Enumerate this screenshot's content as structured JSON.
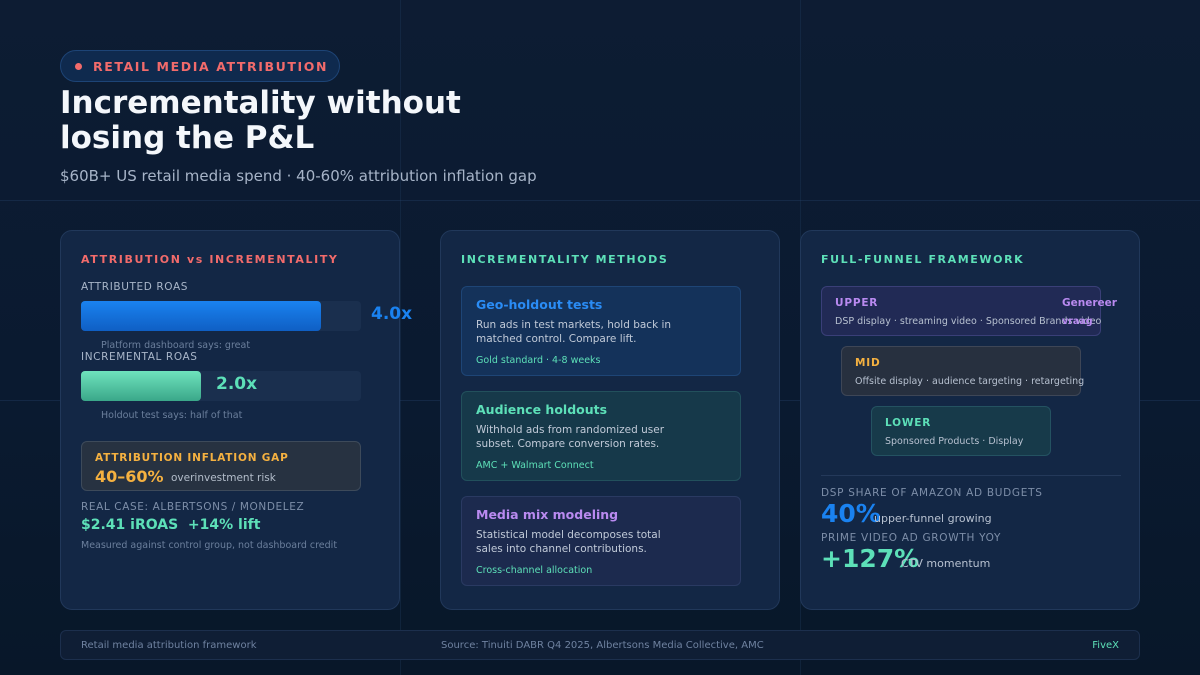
{
  "header": {
    "eyebrow": "RETAIL MEDIA ATTRIBUTION",
    "title_line1": "Incrementality without",
    "title_line2": "losing the P&L",
    "subtitle": "$60B+ US retail media spend · 40-60% attribution inflation gap"
  },
  "colors": {
    "accent_red": "#f26b6b",
    "accent_teal": "#5de0b8",
    "accent_blue": "#1a82f0",
    "accent_amber": "#f5b140",
    "accent_purple": "#b98af0"
  },
  "attribution_card": {
    "title": "ATTRIBUTION vs INCREMENTALITY",
    "attributed_label": "ATTRIBUTED ROAS",
    "attributed_value": "4.0x",
    "attributed_fill": 0.857,
    "attributed_note": "Platform dashboard says: great",
    "incremental_label": "INCREMENTAL ROAS",
    "incremental_value": "2.0x",
    "incremental_fill": 0.429,
    "incremental_note": "Holdout test says: half of that",
    "gap_title": "ATTRIBUTION INFLATION GAP",
    "gap_value": "40–60%",
    "gap_caption": "overinvestment risk",
    "case_label": "REAL CASE: ALBERTSONS / MONDELEZ",
    "case_values": "$2.41 iROAS  +14% lift",
    "case_note": "Measured against control group, not dashboard credit"
  },
  "methods_card": {
    "title": "INCREMENTALITY METHODS",
    "items": [
      {
        "name": "Geo-holdout tests",
        "description": "Run ads in test markets, hold back in matched control. Compare lift.",
        "footnote": "Gold standard · 4-8 weeks"
      },
      {
        "name": "Audience holdouts",
        "description": "Withhold ads from randomized user subset. Compare conversion rates.",
        "footnote": "AMC + Walmart Connect"
      },
      {
        "name": "Media mix modeling",
        "description": "Statistical model decomposes total sales into channel contributions.",
        "footnote": "Cross-channel allocation"
      }
    ]
  },
  "funnel_card": {
    "title": "FULL-FUNNEL FRAMEWORK",
    "upper": {
      "name": "UPPER",
      "description": "DSP display · streaming video · Sponsored Brands video",
      "tag_line1": "Genereer",
      "tag_line2": "vraag"
    },
    "mid": {
      "name": "MID",
      "description": "Offsite display · audience targeting · retargeting"
    },
    "lower": {
      "name": "LOWER",
      "description": "Sponsored Products · Display"
    },
    "stat1_label": "DSP SHARE OF AMAZON AD BUDGETS",
    "stat1_value": "40%",
    "stat1_caption": "upper-funnel growing",
    "stat2_label": "PRIME VIDEO AD GROWTH YOY",
    "stat2_value": "+127%",
    "stat2_caption": "CTV momentum"
  },
  "footer": {
    "left": "Retail media attribution framework",
    "center": "Source: Tinuiti DABR Q4 2025, Albertsons Media Collective, AMC",
    "right": "FiveX"
  }
}
